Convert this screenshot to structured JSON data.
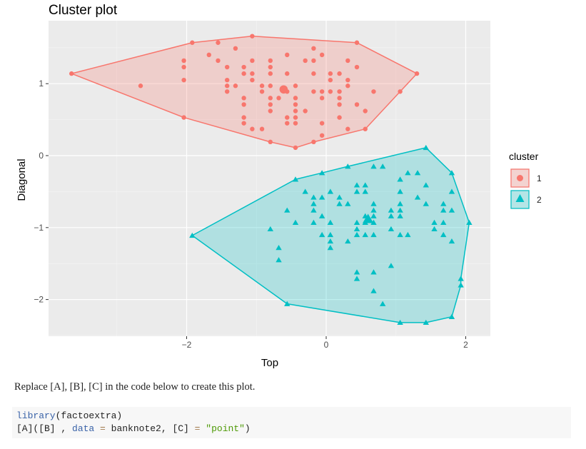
{
  "chart_data": {
    "type": "scatter",
    "title": "Cluster plot",
    "xlabel": "Top",
    "ylabel": "Diagonal",
    "xlim": [
      -3.95,
      2.35
    ],
    "ylim": [
      -2.52,
      1.88
    ],
    "xticks": [
      -2,
      0,
      2
    ],
    "yticks": [
      -2,
      -1,
      0,
      1
    ],
    "xtick_labels": [
      "−2",
      "0",
      "2"
    ],
    "ytick_labels": [
      "−2",
      "−1",
      "0",
      "1"
    ],
    "grid": true,
    "legend": {
      "title": "cluster",
      "position": "right",
      "entries": [
        "1",
        "2"
      ]
    },
    "series": [
      {
        "name": "1",
        "marker": "circle",
        "color": "#F8766D",
        "centroid": [
          -0.61,
          0.92
        ],
        "hull": [
          [
            -3.65,
            1.14
          ],
          [
            -1.92,
            1.57
          ],
          [
            -1.06,
            1.66
          ],
          [
            0.44,
            1.57
          ],
          [
            1.3,
            1.14
          ],
          [
            1.06,
            0.89
          ],
          [
            0.56,
            0.37
          ],
          [
            -0.18,
            0.19
          ],
          [
            -0.44,
            0.11
          ],
          [
            -0.8,
            0.19
          ],
          [
            -2.04,
            0.53
          ]
        ],
        "points": [
          [
            -3.65,
            1.14
          ],
          [
            -2.66,
            0.97
          ],
          [
            -1.92,
            1.57
          ],
          [
            -1.55,
            1.57
          ],
          [
            -1.06,
            1.66
          ],
          [
            0.44,
            1.57
          ],
          [
            -1.3,
            1.49
          ],
          [
            -0.18,
            1.49
          ],
          [
            -1.68,
            1.4
          ],
          [
            -0.56,
            1.4
          ],
          [
            -0.06,
            1.4
          ],
          [
            -2.04,
            1.32
          ],
          [
            -1.55,
            1.32
          ],
          [
            -1.06,
            1.32
          ],
          [
            -0.8,
            1.32
          ],
          [
            -0.3,
            1.32
          ],
          [
            -0.18,
            1.32
          ],
          [
            0.31,
            1.32
          ],
          [
            -2.04,
            1.23
          ],
          [
            -1.42,
            1.23
          ],
          [
            -1.18,
            1.23
          ],
          [
            -0.8,
            1.23
          ],
          [
            0.44,
            1.23
          ],
          [
            -1.18,
            1.14
          ],
          [
            -1.06,
            1.14
          ],
          [
            -0.8,
            1.14
          ],
          [
            -0.56,
            1.14
          ],
          [
            -0.18,
            1.14
          ],
          [
            0.06,
            1.14
          ],
          [
            0.19,
            1.14
          ],
          [
            1.3,
            1.14
          ],
          [
            -2.04,
            1.05
          ],
          [
            -1.42,
            1.05
          ],
          [
            -1.06,
            1.05
          ],
          [
            0.06,
            1.05
          ],
          [
            0.31,
            1.05
          ],
          [
            -1.42,
            0.97
          ],
          [
            -1.3,
            0.97
          ],
          [
            -0.92,
            0.97
          ],
          [
            -0.8,
            0.97
          ],
          [
            -0.44,
            0.97
          ],
          [
            0.31,
            0.97
          ],
          [
            -0.56,
            0.89
          ],
          [
            -1.42,
            0.89
          ],
          [
            -0.92,
            0.89
          ],
          [
            -0.18,
            0.89
          ],
          [
            -0.06,
            0.89
          ],
          [
            0.06,
            0.89
          ],
          [
            0.19,
            0.89
          ],
          [
            0.68,
            0.89
          ],
          [
            1.06,
            0.89
          ],
          [
            -1.18,
            0.8
          ],
          [
            -0.8,
            0.8
          ],
          [
            -0.68,
            0.8
          ],
          [
            -0.44,
            0.8
          ],
          [
            -0.06,
            0.8
          ],
          [
            0.19,
            0.8
          ],
          [
            -1.18,
            0.71
          ],
          [
            -0.8,
            0.71
          ],
          [
            -0.44,
            0.71
          ],
          [
            0.19,
            0.71
          ],
          [
            0.44,
            0.71
          ],
          [
            -0.8,
            0.62
          ],
          [
            -0.44,
            0.62
          ],
          [
            -0.3,
            0.62
          ],
          [
            0.56,
            0.62
          ],
          [
            -2.04,
            0.53
          ],
          [
            -1.18,
            0.53
          ],
          [
            -0.56,
            0.53
          ],
          [
            -0.44,
            0.53
          ],
          [
            0.19,
            0.53
          ],
          [
            -1.18,
            0.45
          ],
          [
            -0.56,
            0.45
          ],
          [
            -0.44,
            0.45
          ],
          [
            -0.06,
            0.45
          ],
          [
            -1.06,
            0.37
          ],
          [
            -0.92,
            0.37
          ],
          [
            0.31,
            0.37
          ],
          [
            0.56,
            0.37
          ],
          [
            -0.06,
            0.28
          ],
          [
            -0.8,
            0.19
          ],
          [
            -0.18,
            0.19
          ],
          [
            -0.44,
            0.11
          ]
        ]
      },
      {
        "name": "2",
        "marker": "triangle",
        "color": "#00BFC4",
        "centroid": [
          0.6,
          -0.88
        ],
        "hull": [
          [
            1.43,
            0.11
          ],
          [
            1.8,
            -0.24
          ],
          [
            2.05,
            -0.93
          ],
          [
            1.93,
            -1.71
          ],
          [
            1.93,
            -1.8
          ],
          [
            1.8,
            -2.24
          ],
          [
            1.43,
            -2.32
          ],
          [
            1.06,
            -2.32
          ],
          [
            -0.56,
            -2.06
          ],
          [
            -1.92,
            -1.11
          ],
          [
            -0.44,
            -0.33
          ],
          [
            -0.06,
            -0.24
          ],
          [
            0.31,
            -0.15
          ]
        ],
        "points": [
          [
            1.43,
            0.11
          ],
          [
            1.8,
            -0.24
          ],
          [
            2.05,
            -0.93
          ],
          [
            1.93,
            -1.71
          ],
          [
            1.93,
            -1.8
          ],
          [
            1.8,
            -2.24
          ],
          [
            1.43,
            -2.32
          ],
          [
            1.06,
            -2.32
          ],
          [
            -0.56,
            -2.06
          ],
          [
            -1.92,
            -1.11
          ],
          [
            -0.44,
            -0.33
          ],
          [
            -0.06,
            -0.24
          ],
          [
            0.31,
            -0.15
          ],
          [
            0.68,
            -0.15
          ],
          [
            0.81,
            -0.15
          ],
          [
            1.17,
            -0.24
          ],
          [
            1.31,
            -0.24
          ],
          [
            1.06,
            -0.33
          ],
          [
            0.44,
            -0.41
          ],
          [
            0.56,
            -0.41
          ],
          [
            1.43,
            -0.41
          ],
          [
            -0.3,
            -0.5
          ],
          [
            0.06,
            -0.5
          ],
          [
            0.44,
            -0.5
          ],
          [
            0.56,
            -0.5
          ],
          [
            1.06,
            -0.5
          ],
          [
            1.8,
            -0.5
          ],
          [
            -0.18,
            -0.58
          ],
          [
            -0.06,
            -0.58
          ],
          [
            0.19,
            -0.58
          ],
          [
            1.31,
            -0.58
          ],
          [
            -0.18,
            -0.67
          ],
          [
            0.19,
            -0.67
          ],
          [
            0.31,
            -0.67
          ],
          [
            0.68,
            -0.67
          ],
          [
            1.06,
            -0.67
          ],
          [
            1.43,
            -0.67
          ],
          [
            1.68,
            -0.67
          ],
          [
            -0.56,
            -0.76
          ],
          [
            -0.18,
            -0.76
          ],
          [
            0.68,
            -0.76
          ],
          [
            0.93,
            -0.76
          ],
          [
            1.06,
            -0.76
          ],
          [
            1.68,
            -0.76
          ],
          [
            1.8,
            -0.76
          ],
          [
            -0.06,
            -0.84
          ],
          [
            0.56,
            -0.84
          ],
          [
            0.68,
            -0.84
          ],
          [
            0.93,
            -0.84
          ],
          [
            1.06,
            -0.84
          ],
          [
            -0.44,
            -0.93
          ],
          [
            -0.18,
            -0.93
          ],
          [
            0.06,
            -0.93
          ],
          [
            0.44,
            -0.93
          ],
          [
            0.56,
            -0.93
          ],
          [
            0.68,
            -0.93
          ],
          [
            1.55,
            -0.93
          ],
          [
            1.68,
            -0.93
          ],
          [
            -0.8,
            -1.02
          ],
          [
            0.44,
            -1.02
          ],
          [
            0.93,
            -1.02
          ],
          [
            1.55,
            -1.02
          ],
          [
            -0.06,
            -1.1
          ],
          [
            0.06,
            -1.1
          ],
          [
            0.44,
            -1.1
          ],
          [
            0.56,
            -1.1
          ],
          [
            0.68,
            -1.1
          ],
          [
            1.06,
            -1.1
          ],
          [
            1.17,
            -1.1
          ],
          [
            1.68,
            -1.1
          ],
          [
            0.06,
            -1.19
          ],
          [
            0.31,
            -1.19
          ],
          [
            1.8,
            -1.19
          ],
          [
            -0.68,
            -1.28
          ],
          [
            0.06,
            -1.28
          ],
          [
            -0.68,
            -1.45
          ],
          [
            0.93,
            -1.53
          ],
          [
            0.44,
            -1.62
          ],
          [
            0.68,
            -1.62
          ],
          [
            0.44,
            -1.71
          ],
          [
            0.68,
            -1.88
          ],
          [
            0.81,
            -2.06
          ]
        ]
      }
    ]
  },
  "prose": {
    "instruction": "Replace [A], [B], [C] in the code below to create this plot."
  },
  "code": {
    "line1_fn": "library",
    "line1_rest": "(factoextra)",
    "line2_a": "[A]([B] , ",
    "line2_kw": "data",
    "line2_eq1": " = ",
    "line2_b": "banknote2, [C] ",
    "line2_eq2": "=",
    "line2_space": " ",
    "line2_str": "\"point\"",
    "line2_close": ")"
  }
}
